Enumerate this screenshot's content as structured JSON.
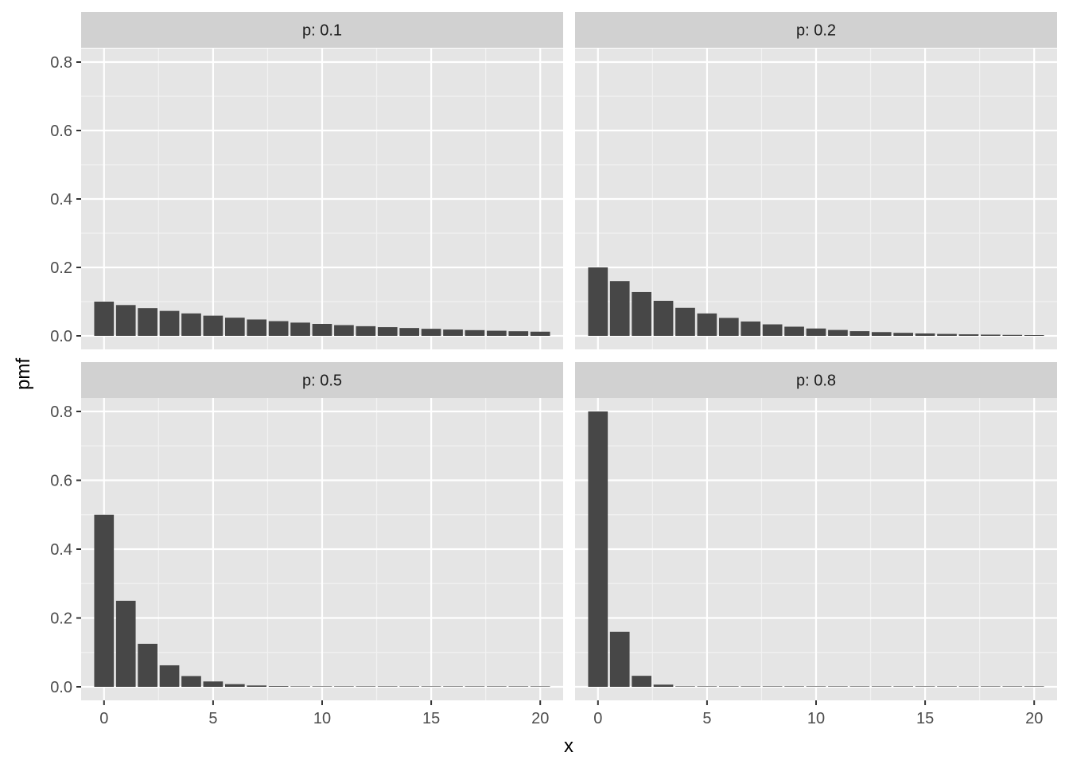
{
  "chart_data": {
    "type": "bar",
    "xlabel": "x",
    "ylabel": "pmf",
    "x_range": [
      -0.5,
      20.5
    ],
    "ylim": [
      0,
      0.8
    ],
    "x_ticks": [
      0,
      5,
      10,
      15,
      20
    ],
    "y_ticks": [
      0.0,
      0.2,
      0.4,
      0.6,
      0.8
    ],
    "x_tick_labels": [
      "0",
      "5",
      "10",
      "15",
      "20"
    ],
    "y_tick_labels": [
      "0.0",
      "0.2",
      "0.4",
      "0.6",
      "0.8"
    ],
    "grid": true,
    "bar_color": "#474747",
    "panel_bg": "#e5e5e5",
    "strip_bg": "#d1d1d1",
    "x": [
      0,
      1,
      2,
      3,
      4,
      5,
      6,
      7,
      8,
      9,
      10,
      11,
      12,
      13,
      14,
      15,
      16,
      17,
      18,
      19,
      20
    ],
    "panels": [
      {
        "label": "p: 0.1",
        "values": [
          0.1,
          0.09,
          0.081,
          0.0729,
          0.0656,
          0.059,
          0.0531,
          0.0478,
          0.043,
          0.0387,
          0.0349,
          0.0314,
          0.0282,
          0.0254,
          0.0229,
          0.0206,
          0.0185,
          0.0167,
          0.015,
          0.0135,
          0.0122
        ]
      },
      {
        "label": "p: 0.2",
        "values": [
          0.2,
          0.16,
          0.128,
          0.1024,
          0.0819,
          0.0655,
          0.0524,
          0.0419,
          0.0336,
          0.0268,
          0.0215,
          0.0172,
          0.0137,
          0.011,
          0.0088,
          0.007,
          0.0056,
          0.0045,
          0.0036,
          0.0029,
          0.0023
        ]
      },
      {
        "label": "p: 0.5",
        "values": [
          0.5,
          0.25,
          0.125,
          0.0625,
          0.0313,
          0.0156,
          0.0078,
          0.0039,
          0.002,
          0.001,
          0.0005,
          0.0002,
          0.0001,
          0.0001,
          0.0,
          0.0,
          0.0,
          0.0,
          0.0,
          0.0,
          0.0
        ]
      },
      {
        "label": "p: 0.8",
        "values": [
          0.8,
          0.16,
          0.032,
          0.0064,
          0.0013,
          0.0003,
          0.0001,
          0.0,
          0.0,
          0.0,
          0.0,
          0.0,
          0.0,
          0.0,
          0.0,
          0.0,
          0.0,
          0.0,
          0.0,
          0.0,
          0.0
        ]
      }
    ]
  }
}
